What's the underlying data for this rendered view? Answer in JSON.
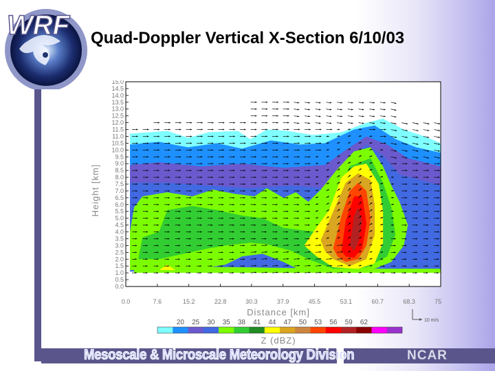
{
  "slide": {
    "title": "Quad-Doppler Vertical X-Section 6/10/03",
    "logo_text": "WRF",
    "footer_division": "Mesoscale & Microscale Meteorology Division",
    "footer_org": "NCAR"
  },
  "colors": {
    "band": "#5a568c",
    "accent_purple": "#aaa4e8"
  },
  "chart_data": {
    "type": "heatmap",
    "xlabel": "Distance [km]",
    "ylabel": "Height [km]",
    "xlim": [
      0.0,
      75.9
    ],
    "ylim": [
      0.0,
      15.0
    ],
    "x_ticks": [
      "0.0",
      "7.6",
      "15.2",
      "22.8",
      "30.3",
      "37.9",
      "45.5",
      "53.1",
      "60.7",
      "68.3",
      "75.9"
    ],
    "y_ticks": [
      "0.0",
      "0.5",
      "1.0",
      "1.5",
      "2.0",
      "2.5",
      "3.0",
      "3.5",
      "4.0",
      "4.5",
      "5.0",
      "5.5",
      "6.0",
      "6.5",
      "7.0",
      "7.5",
      "8.0",
      "8.5",
      "9.0",
      "9.5",
      "10.0",
      "10.5",
      "11.0",
      "11.5",
      "12.0",
      "12.5",
      "13.0",
      "13.5",
      "14.0",
      "14.5",
      "15.0"
    ],
    "vector_scale_label": "10 m/s",
    "colorbar": {
      "label": "Z (dBZ)",
      "ticks": [
        "20",
        "25",
        "30",
        "35",
        "38",
        "41",
        "44",
        "47",
        "50",
        "53",
        "56",
        "59",
        "62"
      ],
      "colors": [
        "#7fffff",
        "#1e90ff",
        "#6a5acd",
        "#4169e1",
        "#7cfc00",
        "#32cd32",
        "#228b22",
        "#ffff00",
        "#daa520",
        "#cd853f",
        "#ff4500",
        "#ff0000",
        "#b22222",
        "#8b0000",
        "#ff00ff",
        "#9932cc"
      ]
    }
  }
}
